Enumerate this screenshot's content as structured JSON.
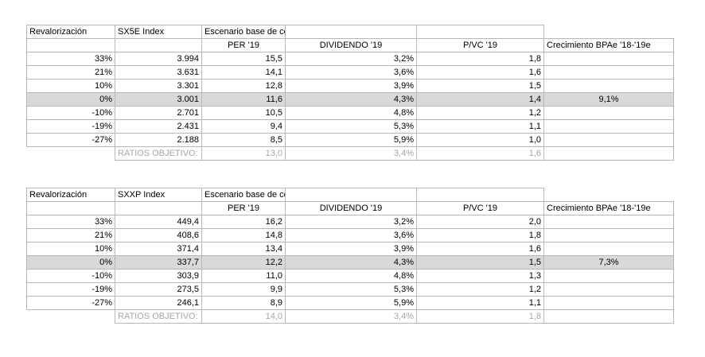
{
  "tables": [
    {
      "index_label": "SX5E Index",
      "reval_label": "Revalorización",
      "scenario_label": "Escenario base de consenso",
      "col_per": "PER '19",
      "col_div": "DIVIDENDO '19",
      "col_pvc": "P/VC '19",
      "col_growth": "Crecimiento BPAe '18-'19e",
      "rows": [
        {
          "reval": "33%",
          "index": "3.994",
          "per": "15,5",
          "div": "3,2%",
          "pvc": "1,8",
          "growth": ""
        },
        {
          "reval": "21%",
          "index": "3.631",
          "per": "14,1",
          "div": "3,6%",
          "pvc": "1,6",
          "growth": ""
        },
        {
          "reval": "10%",
          "index": "3.301",
          "per": "12,8",
          "div": "3,9%",
          "pvc": "1,5",
          "growth": ""
        },
        {
          "reval": "0%",
          "index": "3.001",
          "per": "11,6",
          "div": "4,3%",
          "pvc": "1,4",
          "growth": "9,1%"
        },
        {
          "reval": "-10%",
          "index": "2.701",
          "per": "10,5",
          "div": "4,8%",
          "pvc": "1,2",
          "growth": ""
        },
        {
          "reval": "-19%",
          "index": "2.431",
          "per": "9,4",
          "div": "5,3%",
          "pvc": "1,1",
          "growth": ""
        },
        {
          "reval": "-27%",
          "index": "2.188",
          "per": "8,5",
          "div": "5,9%",
          "pvc": "1,0",
          "growth": ""
        }
      ],
      "ratios": {
        "label": "RATIOS OBJETIVO:",
        "per": "13,0",
        "div": "3,4%",
        "pvc": "1,6"
      }
    },
    {
      "index_label": "SXXP Index",
      "reval_label": "Revalorización",
      "scenario_label": "Escenario base de consenso",
      "col_per": "PER '19",
      "col_div": "DIVIDENDO '19",
      "col_pvc": "P/VC '19",
      "col_growth": "Crecimiento BPAe '18-'19e",
      "rows": [
        {
          "reval": "33%",
          "index": "449,4",
          "per": "16,2",
          "div": "3,2%",
          "pvc": "2,0",
          "growth": ""
        },
        {
          "reval": "21%",
          "index": "408,6",
          "per": "14,8",
          "div": "3,6%",
          "pvc": "1,8",
          "growth": ""
        },
        {
          "reval": "10%",
          "index": "371,4",
          "per": "13,4",
          "div": "3,9%",
          "pvc": "1,6",
          "growth": ""
        },
        {
          "reval": "0%",
          "index": "337,7",
          "per": "12,2",
          "div": "4,3%",
          "pvc": "1,5",
          "growth": "7,3%"
        },
        {
          "reval": "-10%",
          "index": "303,9",
          "per": "11,0",
          "div": "4,8%",
          "pvc": "1,3",
          "growth": ""
        },
        {
          "reval": "-19%",
          "index": "273,5",
          "per": "9,9",
          "div": "5,3%",
          "pvc": "1,2",
          "growth": ""
        },
        {
          "reval": "-27%",
          "index": "246,1",
          "per": "8,9",
          "div": "5,9%",
          "pvc": "1,1",
          "growth": ""
        }
      ],
      "ratios": {
        "label": "RATIOS OBJETIVO:",
        "per": "14,0",
        "div": "3,4%",
        "pvc": "1,8"
      }
    }
  ]
}
